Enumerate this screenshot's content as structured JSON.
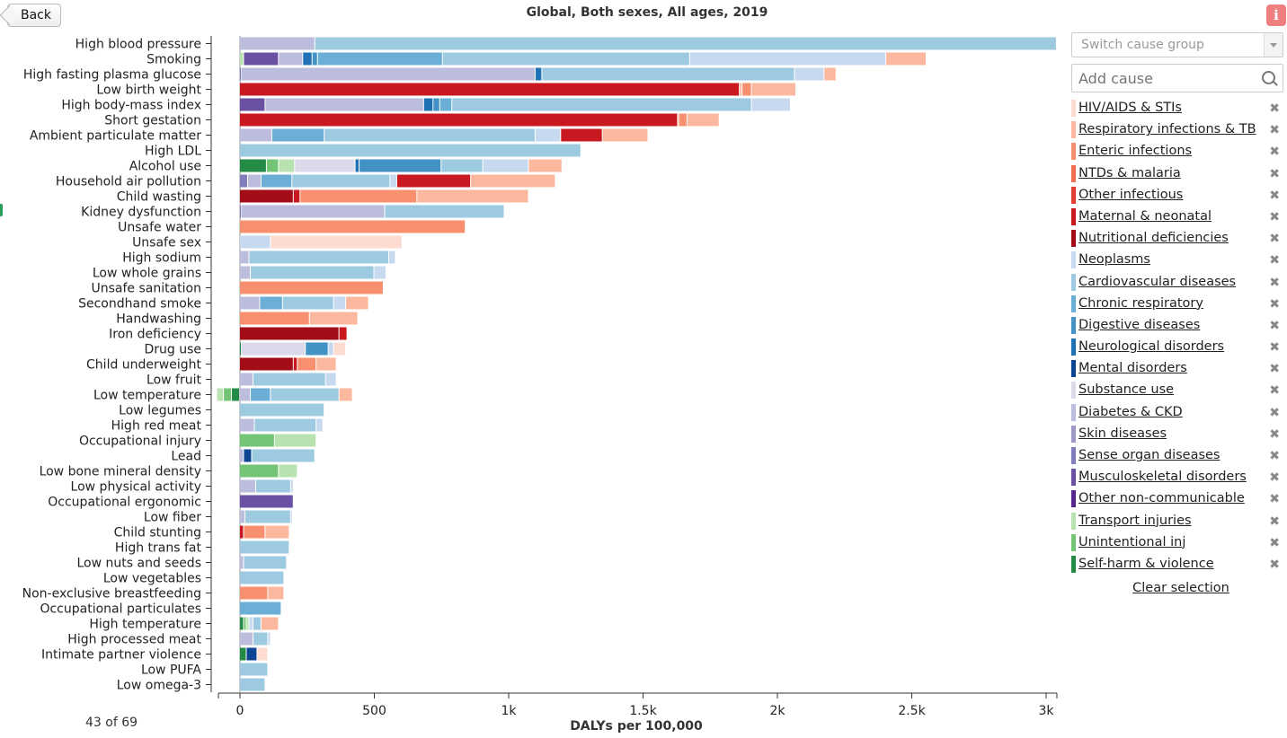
{
  "header": {
    "back_label": "Back",
    "title": "Global, Both sexes, All ages, 2019",
    "info_icon": "info-icon"
  },
  "footer": {
    "count_label": "43 of 69"
  },
  "colors": {
    "HIV/AIDS & STIs": "#fddbd0",
    "Respiratory infections & TB": "#fcb89e",
    "Enteric infections": "#f8906f",
    "NTDs & malaria": "#f26c51",
    "Other infectious": "#e33e32",
    "Maternal & neonatal": "#c9181f",
    "Nutritional deficiencies": "#a30d18",
    "Neoplasms": "#c7d9ef",
    "Cardiovascular diseases": "#9ecae1",
    "Chronic respiratory": "#6baed6",
    "Digestive diseases": "#4292c6",
    "Neurological disorders": "#2171b5",
    "Mental disorders": "#0b4593",
    "Substance use": "#dadaeb",
    "Diabetes & CKD": "#bcbddc",
    "Skin diseases": "#9e9ac8",
    "Sense organ diseases": "#807dba",
    "Musculoskeletal disorders": "#6a51a3",
    "Other non-communicable": "#54278f",
    "Transport injuries": "#b8e3b0",
    "Unintentional inj": "#74c476",
    "Self-harm & violence": "#238b45"
  },
  "sidebar": {
    "switch_placeholder": "Switch cause group",
    "add_placeholder": "Add cause",
    "clear_label": "Clear selection",
    "legend": [
      "HIV/AIDS & STIs",
      "Respiratory infections & TB",
      "Enteric infections",
      "NTDs & malaria",
      "Other infectious",
      "Maternal & neonatal",
      "Nutritional deficiencies",
      "Neoplasms",
      "Cardiovascular diseases",
      "Chronic respiratory",
      "Digestive diseases",
      "Neurological disorders",
      "Mental disorders",
      "Substance use",
      "Diabetes & CKD",
      "Skin diseases",
      "Sense organ diseases",
      "Musculoskeletal disorders",
      "Other non-communicable",
      "Transport injuries",
      "Unintentional inj",
      "Self-harm & violence"
    ]
  },
  "chart_data": {
    "type": "bar",
    "orientation": "horizontal",
    "stacked": true,
    "title": "Global, Both sexes, All ages, 2019",
    "xlabel": "DALYs per 100,000",
    "xlim": [
      -80,
      3040
    ],
    "x_ticks": [
      0,
      500,
      1000,
      1500,
      2000,
      2500,
      3000
    ],
    "x_tick_labels": [
      "0",
      "500",
      "1k",
      "1.5k",
      "2k",
      "2.5k",
      "3k"
    ],
    "grid": false,
    "bars": [
      {
        "label": "High blood pressure",
        "pos": [
          [
            "Diabetes & CKD",
            280
          ],
          [
            "Cardiovascular diseases",
            2760
          ]
        ]
      },
      {
        "label": "Smoking",
        "neg": [],
        "pos": [
          [
            "Transport injuries",
            15
          ],
          [
            "Musculoskeletal disorders",
            130
          ],
          [
            "Diabetes & CKD",
            90
          ],
          [
            "Neurological disorders",
            35
          ],
          [
            "Digestive diseases",
            20
          ],
          [
            "Chronic respiratory",
            465
          ],
          [
            "Cardiovascular diseases",
            920
          ],
          [
            "Neoplasms",
            730
          ],
          [
            "Respiratory infections & TB",
            150
          ]
        ]
      },
      {
        "label": "High fasting plasma glucose",
        "pos": [
          [
            "Sense organ diseases",
            5
          ],
          [
            "Diabetes & CKD",
            1095
          ],
          [
            "Neurological disorders",
            25
          ],
          [
            "Cardiovascular diseases",
            940
          ],
          [
            "Neoplasms",
            110
          ],
          [
            "Respiratory infections & TB",
            45
          ]
        ]
      },
      {
        "label": "Low birth weight",
        "pos": [
          [
            "Maternal & neonatal",
            1860
          ],
          [
            "Respiratory infections & TB",
            10
          ],
          [
            "Enteric infections",
            35
          ],
          [
            "Respiratory infections & TB",
            165
          ]
        ]
      },
      {
        "label": "High body-mass index",
        "pos": [
          [
            "Musculoskeletal disorders",
            95
          ],
          [
            "Diabetes & CKD",
            590
          ],
          [
            "Neurological disorders",
            35
          ],
          [
            "Digestive diseases",
            25
          ],
          [
            "Chronic respiratory",
            45
          ],
          [
            "Cardiovascular diseases",
            1115
          ],
          [
            "Neoplasms",
            145
          ]
        ]
      },
      {
        "label": "Short gestation",
        "pos": [
          [
            "Maternal & neonatal",
            1630
          ],
          [
            "Respiratory infections & TB",
            5
          ],
          [
            "Enteric infections",
            30
          ],
          [
            "Respiratory infections & TB",
            120
          ]
        ]
      },
      {
        "label": "Ambient particulate matter",
        "pos": [
          [
            "Diabetes & CKD",
            120
          ],
          [
            "Chronic respiratory",
            195
          ],
          [
            "Cardiovascular diseases",
            785
          ],
          [
            "Neoplasms",
            95
          ],
          [
            "Maternal & neonatal",
            155
          ],
          [
            "Respiratory infections & TB",
            170
          ]
        ]
      },
      {
        "label": "High LDL",
        "pos": [
          [
            "Cardiovascular diseases",
            1270
          ]
        ]
      },
      {
        "label": "Alcohol use",
        "pos": [
          [
            "Self-harm & violence",
            100
          ],
          [
            "Unintentional inj",
            45
          ],
          [
            "Transport injuries",
            60
          ],
          [
            "Substance use",
            225
          ],
          [
            "Neurological disorders",
            15
          ],
          [
            "Digestive diseases",
            305
          ],
          [
            "Cardiovascular diseases",
            155
          ],
          [
            "Neoplasms",
            170
          ],
          [
            "Respiratory infections & TB",
            125
          ]
        ]
      },
      {
        "label": "Household air pollution",
        "pos": [
          [
            "Sense organ diseases",
            30
          ],
          [
            "Diabetes & CKD",
            50
          ],
          [
            "Chronic respiratory",
            115
          ],
          [
            "Cardiovascular diseases",
            365
          ],
          [
            "Neoplasms",
            25
          ],
          [
            "Maternal & neonatal",
            275
          ],
          [
            "Respiratory infections & TB",
            315
          ]
        ]
      },
      {
        "label": "Child wasting",
        "pos": [
          [
            "Nutritional deficiencies",
            200
          ],
          [
            "Maternal & neonatal",
            25
          ],
          [
            "Enteric infections",
            435
          ],
          [
            "Respiratory infections & TB",
            415
          ]
        ]
      },
      {
        "label": "Kidney dysfunction",
        "pos": [
          [
            "Sense organ diseases",
            5
          ],
          [
            "Diabetes & CKD",
            535
          ],
          [
            "Cardiovascular diseases",
            445
          ]
        ]
      },
      {
        "label": "Unsafe water",
        "pos": [
          [
            "Enteric infections",
            840
          ]
        ]
      },
      {
        "label": "Unsafe sex",
        "pos": [
          [
            "Neoplasms",
            115
          ],
          [
            "HIV/AIDS & STIs",
            490
          ]
        ]
      },
      {
        "label": "High sodium",
        "pos": [
          [
            "Diabetes & CKD",
            35
          ],
          [
            "Cardiovascular diseases",
            520
          ],
          [
            "Neoplasms",
            25
          ]
        ]
      },
      {
        "label": "Low whole grains",
        "pos": [
          [
            "Diabetes & CKD",
            40
          ],
          [
            "Cardiovascular diseases",
            460
          ],
          [
            "Neoplasms",
            45
          ]
        ]
      },
      {
        "label": "Unsafe sanitation",
        "pos": [
          [
            "Enteric infections",
            535
          ]
        ]
      },
      {
        "label": "Secondhand smoke",
        "pos": [
          [
            "Diabetes & CKD",
            75
          ],
          [
            "Chronic respiratory",
            85
          ],
          [
            "Cardiovascular diseases",
            190
          ],
          [
            "Neoplasms",
            45
          ],
          [
            "Respiratory infections & TB",
            85
          ]
        ]
      },
      {
        "label": "Handwashing",
        "pos": [
          [
            "Enteric infections",
            260
          ],
          [
            "Respiratory infections & TB",
            180
          ]
        ]
      },
      {
        "label": "Iron deficiency",
        "pos": [
          [
            "Nutritional deficiencies",
            370
          ],
          [
            "Maternal & neonatal",
            30
          ]
        ]
      },
      {
        "label": "Drug use",
        "pos": [
          [
            "Self-harm & violence",
            5
          ],
          [
            "Substance use",
            240
          ],
          [
            "Digestive diseases",
            85
          ],
          [
            "Neoplasms",
            20
          ],
          [
            "HIV/AIDS & STIs",
            45
          ]
        ]
      },
      {
        "label": "Child underweight",
        "pos": [
          [
            "Nutritional deficiencies",
            200
          ],
          [
            "Maternal & neonatal",
            15
          ],
          [
            "Enteric infections",
            70
          ],
          [
            "Respiratory infections & TB",
            75
          ]
        ]
      },
      {
        "label": "Low fruit",
        "pos": [
          [
            "Diabetes & CKD",
            50
          ],
          [
            "Cardiovascular diseases",
            270
          ],
          [
            "Neoplasms",
            40
          ]
        ]
      },
      {
        "label": "Low temperature",
        "neg": [
          [
            "Self-harm & violence",
            30
          ],
          [
            "Unintentional inj",
            30
          ],
          [
            "Transport injuries",
            25
          ]
        ],
        "pos": [
          [
            "Diabetes & CKD",
            40
          ],
          [
            "Chronic respiratory",
            75
          ],
          [
            "Cardiovascular diseases",
            255
          ],
          [
            "Respiratory infections & TB",
            50
          ]
        ]
      },
      {
        "label": "Low legumes",
        "pos": [
          [
            "Cardiovascular diseases",
            315
          ]
        ]
      },
      {
        "label": "High red meat",
        "pos": [
          [
            "Diabetes & CKD",
            55
          ],
          [
            "Cardiovascular diseases",
            230
          ],
          [
            "Neoplasms",
            25
          ]
        ]
      },
      {
        "label": "Occupational injury",
        "pos": [
          [
            "Unintentional inj",
            130
          ],
          [
            "Transport injuries",
            155
          ]
        ]
      },
      {
        "label": "Lead",
        "pos": [
          [
            "Diabetes & CKD",
            15
          ],
          [
            "Mental disorders",
            30
          ],
          [
            "Cardiovascular diseases",
            235
          ]
        ]
      },
      {
        "label": "Low bone mineral density",
        "pos": [
          [
            "Unintentional inj",
            145
          ],
          [
            "Transport injuries",
            70
          ]
        ]
      },
      {
        "label": "Low physical activity",
        "pos": [
          [
            "Diabetes & CKD",
            60
          ],
          [
            "Cardiovascular diseases",
            130
          ],
          [
            "Neoplasms",
            10
          ]
        ]
      },
      {
        "label": "Occupational ergonomic",
        "pos": [
          [
            "Musculoskeletal disorders",
            200
          ]
        ]
      },
      {
        "label": "Low fiber",
        "pos": [
          [
            "Diabetes & CKD",
            20
          ],
          [
            "Cardiovascular diseases",
            170
          ],
          [
            "Neoplasms",
            5
          ]
        ]
      },
      {
        "label": "Child stunting",
        "pos": [
          [
            "Maternal & neonatal",
            15
          ],
          [
            "Enteric infections",
            80
          ],
          [
            "Respiratory infections & TB",
            90
          ]
        ]
      },
      {
        "label": "High trans fat",
        "pos": [
          [
            "Cardiovascular diseases",
            185
          ]
        ]
      },
      {
        "label": "Low nuts and seeds",
        "pos": [
          [
            "Diabetes & CKD",
            15
          ],
          [
            "Cardiovascular diseases",
            160
          ]
        ]
      },
      {
        "label": "Low vegetables",
        "pos": [
          [
            "Cardiovascular diseases",
            165
          ]
        ]
      },
      {
        "label": "Non-exclusive breastfeeding",
        "pos": [
          [
            "Enteric infections",
            105
          ],
          [
            "Respiratory infections & TB",
            60
          ]
        ]
      },
      {
        "label": "Occupational particulates",
        "pos": [
          [
            "Chronic respiratory",
            155
          ]
        ]
      },
      {
        "label": "High temperature",
        "pos": [
          [
            "Self-harm & violence",
            15
          ],
          [
            "Unintentional inj",
            10
          ],
          [
            "Transport injuries",
            10
          ],
          [
            "Neoplasms",
            15
          ],
          [
            "Cardiovascular diseases",
            30
          ],
          [
            "Respiratory infections & TB",
            65
          ]
        ]
      },
      {
        "label": "High processed meat",
        "pos": [
          [
            "Diabetes & CKD",
            50
          ],
          [
            "Cardiovascular diseases",
            55
          ],
          [
            "Neoplasms",
            10
          ]
        ]
      },
      {
        "label": "Intimate partner violence",
        "pos": [
          [
            "Self-harm & violence",
            25
          ],
          [
            "Mental disorders",
            40
          ],
          [
            "HIV/AIDS & STIs",
            40
          ]
        ]
      },
      {
        "label": "Low PUFA",
        "pos": [
          [
            "Cardiovascular diseases",
            105
          ]
        ]
      },
      {
        "label": "Low omega-3",
        "pos": [
          [
            "Cardiovascular diseases",
            95
          ]
        ]
      }
    ]
  }
}
